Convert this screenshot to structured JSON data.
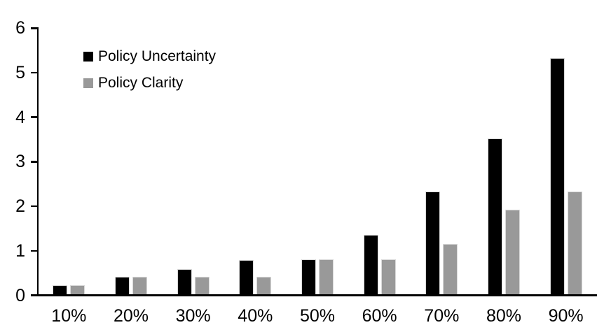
{
  "chart_data": {
    "type": "bar",
    "title": "",
    "xlabel": "",
    "ylabel": "",
    "categories": [
      "10%",
      "20%",
      "30%",
      "40%",
      "50%",
      "60%",
      "70%",
      "80%",
      "90%"
    ],
    "series": [
      {
        "name": "Policy Uncertainty",
        "color": "#000000",
        "values": [
          0.2,
          0.4,
          0.57,
          0.77,
          0.78,
          1.33,
          2.3,
          3.5,
          5.3
        ]
      },
      {
        "name": "Policy Clarity",
        "color": "#999999",
        "values": [
          0.2,
          0.4,
          0.4,
          0.4,
          0.78,
          0.78,
          1.13,
          1.9,
          2.3
        ]
      }
    ],
    "ylim": [
      0,
      6
    ],
    "yticks": [
      0,
      1,
      2,
      3,
      4,
      5,
      6
    ],
    "grid": false,
    "legend_position": "inside-top-left",
    "axis_color": "#000000",
    "bar_border_color": "#d9d9d9",
    "background": "#ffffff"
  }
}
